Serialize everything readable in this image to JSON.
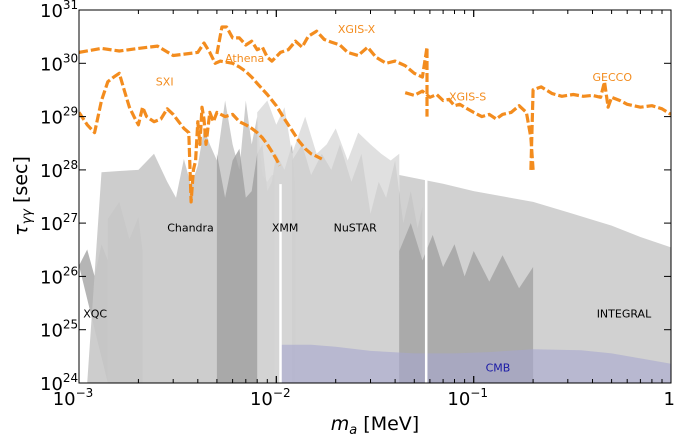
{
  "chart_data": {
    "type": "area",
    "xscale": "log",
    "yscale": "log",
    "xlim": [
      0.001,
      1
    ],
    "ylim": [
      1e+24,
      1e+31
    ],
    "xlabel": "m_a [MeV]",
    "ylabel": "τ_γγ [sec]",
    "x_ticks": [
      {
        "value": 0.001,
        "mantissa": "10",
        "exp": "−3"
      },
      {
        "value": 0.01,
        "mantissa": "10",
        "exp": "−2"
      },
      {
        "value": 0.1,
        "mantissa": "10",
        "exp": "−1"
      },
      {
        "value": 1,
        "mantissa": "1",
        "exp": ""
      }
    ],
    "y_ticks": [
      {
        "value": 1e+24,
        "mantissa": "10",
        "exp": "24"
      },
      {
        "value": 1e+25,
        "mantissa": "10",
        "exp": "25"
      },
      {
        "value": 1e+26,
        "mantissa": "10",
        "exp": "26"
      },
      {
        "value": 1e+27,
        "mantissa": "10",
        "exp": "27"
      },
      {
        "value": 1e+28,
        "mantissa": "10",
        "exp": "28"
      },
      {
        "value": 1e+29,
        "mantissa": "10",
        "exp": "29"
      },
      {
        "value": 1e+30,
        "mantissa": "10",
        "exp": "30"
      },
      {
        "value": 1e+31,
        "mantissa": "10",
        "exp": "31"
      }
    ],
    "excluded_regions": [
      {
        "name": "XQC",
        "color": "#a8a8a8",
        "opacity": 0.85,
        "label_at": [
          0.00105,
          1.7e+25
        ],
        "label_color": "#000000",
        "x": [
          0.001,
          0.0011,
          0.0012,
          0.0013,
          0.0014,
          0.0014
        ],
        "y": [
          1.6e+26,
          3.2e+26,
          1e+26,
          4e+26,
          2e+26,
          1e+24
        ]
      },
      {
        "name": "",
        "color": "#bdbdbd",
        "opacity": 0.85,
        "label_at": null,
        "label_color": "#000000",
        "x": [
          0.0014,
          0.0014,
          0.0016,
          0.0018,
          0.002,
          0.0021,
          0.0021
        ],
        "y": [
          1e+24,
          1.2e+27,
          2.5e+27,
          5e+26,
          1.3e+27,
          3e+26,
          1e+24
        ]
      },
      {
        "name": "Chandra",
        "color": "#c8c8c8",
        "opacity": 0.9,
        "label_at": [
          0.0028,
          7e+26
        ],
        "label_color": "#000000",
        "x": [
          0.0011,
          0.0013,
          0.0016,
          0.002,
          0.0024,
          0.0028,
          0.0031,
          0.0034,
          0.0037,
          0.004,
          0.0043,
          0.0046,
          0.005,
          0.0055,
          0.006,
          0.0065,
          0.007,
          0.0075,
          0.008,
          0.0085,
          0.009,
          0.0095,
          0.0098,
          0.0098
        ],
        "y": [
          1e+24,
          9e+27,
          9.5e+27,
          1e+28,
          2e+28,
          6e+27,
          3e+27,
          1.6e+28,
          5e+27,
          1.2e+28,
          6e+28,
          3e+28,
          1.5e+28,
          2e+29,
          3e+28,
          1e+28,
          2e+29,
          3e+28,
          1e+29,
          8e+27,
          6e+27,
          8e+27,
          8e+27,
          1e+24
        ]
      },
      {
        "name": "XMM",
        "color": "#9c9c9c",
        "opacity": 0.75,
        "label_at": [
          0.0095,
          7e+26
        ],
        "label_color": "#000000",
        "x": [
          0.005,
          0.005,
          0.0055,
          0.006,
          0.0065,
          0.007,
          0.0075,
          0.008,
          0.0085,
          0.009,
          0.0095,
          0.01,
          0.011,
          0.012,
          0.0125,
          0.0125
        ],
        "y": [
          1e+24,
          2e+28,
          3e+27,
          1.5e+28,
          2.5e+28,
          3e+27,
          4e+27,
          2e+28,
          3e+28,
          4e+27,
          6e+27,
          2e+28,
          1e+28,
          3e+28,
          4e+27,
          1e+24
        ]
      },
      {
        "name": "NuSTAR",
        "color": "#8c8c8c",
        "opacity": 0.8,
        "label_at": [
          0.0195,
          7e+26
        ],
        "label_color": "#000000",
        "x": [
          0.012,
          0.012,
          0.0135,
          0.015,
          0.017,
          0.019,
          0.021,
          0.024,
          0.027,
          0.03,
          0.033,
          0.036,
          0.04,
          0.044,
          0.048,
          0.052,
          0.055,
          0.055
        ],
        "y": [
          1e+24,
          1.5e+28,
          3e+28,
          8e+27,
          2e+28,
          1e+28,
          3e+28,
          6e+27,
          2e+28,
          1.5e+27,
          6e+27,
          3e+27,
          1.5e+28,
          1e+27,
          4e+27,
          8e+26,
          2e+27,
          1e+24
        ]
      },
      {
        "name": "",
        "color": "#dadada",
        "opacity": 0.85,
        "label_at": null,
        "label_color": "#000000",
        "x": [
          0.008,
          0.008,
          0.009,
          0.01,
          0.011,
          0.012,
          0.014,
          0.016,
          0.018,
          0.02,
          0.023,
          0.026,
          0.03,
          0.034,
          0.038,
          0.042,
          0.042
        ],
        "y": [
          1e+24,
          1.2e+29,
          2e+29,
          7e+28,
          1.5e+29,
          2e+28,
          1e+29,
          2e+28,
          3e+28,
          6e+28,
          1.5e+28,
          5e+28,
          3e+28,
          2e+28,
          1.5e+28,
          2e+28,
          1e+24
        ]
      },
      {
        "name": "INTEGRAL",
        "color": "#cccccc",
        "opacity": 0.9,
        "label_at": [
          0.42,
          1.7e+25
        ],
        "label_color": "#000000",
        "x": [
          0.042,
          0.042,
          0.07,
          0.1,
          0.2,
          0.3,
          0.5,
          0.7,
          1.0,
          1.0
        ],
        "y": [
          1e+24,
          8e+27,
          5.5e+27,
          4e+27,
          2.5e+27,
          1.6e+27,
          9e+26,
          5.5e+26,
          3.5e+26,
          1e+24
        ]
      },
      {
        "name": "",
        "color": "#a4a4a4",
        "opacity": 0.85,
        "label_at": null,
        "label_color": "#000000",
        "x": [
          0.042,
          0.042,
          0.048,
          0.055,
          0.062,
          0.07,
          0.08,
          0.09,
          0.1,
          0.12,
          0.14,
          0.17,
          0.2,
          0.2
        ],
        "y": [
          1e+24,
          3e+26,
          1e+27,
          2e+26,
          6e+26,
          1.5e+26,
          4e+26,
          1e+26,
          3e+26,
          8e+25,
          2.5e+26,
          6e+25,
          1.5e+26,
          1e+24
        ]
      },
      {
        "name": "CMB",
        "color": "#a7a7cf",
        "opacity": 0.6,
        "label_at": [
          0.115,
          1.65e+24
        ],
        "label_color": "#1a1aa6",
        "x": [
          0.0105,
          0.015,
          0.02,
          0.03,
          0.05,
          0.08,
          0.12,
          0.2,
          0.35,
          0.5,
          0.7,
          1.0,
          1.0,
          0.0105
        ],
        "y": [
          5.2e+24,
          5.2e+24,
          4.8e+24,
          4e+24,
          3.6e+24,
          3.6e+24,
          3.8e+24,
          4.3e+24,
          4.1e+24,
          3.6e+24,
          2.9e+24,
          2.3e+24,
          1e+24,
          1e+24
        ]
      }
    ],
    "gaps": [
      {
        "x": 0.0105,
        "y_top": 5.4e+27
      },
      {
        "x": 0.0575,
        "y_top": 9e+27
      }
    ],
    "projections": [
      {
        "name": "XGIS-X",
        "label_at": [
          0.0205,
          3.7e+30
        ],
        "x": [
          0.005,
          0.0053,
          0.0056,
          0.006,
          0.0065,
          0.007,
          0.0075,
          0.008,
          0.0085,
          0.009,
          0.0095,
          0.0105,
          0.0115,
          0.0125,
          0.0135,
          0.0145,
          0.016,
          0.0175,
          0.019,
          0.021,
          0.023,
          0.026,
          0.029,
          0.032,
          0.036,
          0.04,
          0.045,
          0.05,
          0.055,
          0.058,
          0.058
        ],
        "y": [
          1.5e+30,
          4.8e+30,
          4.8e+30,
          3e+30,
          3e+30,
          2.2e+30,
          2.6e+30,
          1.8e+30,
          2e+30,
          1.3e+30,
          1.1e+30,
          1.6e+30,
          1.8e+30,
          2.6e+30,
          2e+30,
          3.2e+30,
          4e+30,
          2.8e+30,
          2.5e+30,
          2.2e+30,
          1.6e+30,
          1.4e+30,
          2e+30,
          1.3e+30,
          1e+30,
          1.1e+30,
          9e+29,
          6.5e+29,
          5.5e+29,
          2e+30,
          1e+29
        ]
      },
      {
        "name": "Athena",
        "label_at": [
          0.0055,
          1.05e+30
        ],
        "x": [
          0.001,
          0.0013,
          0.0016,
          0.002,
          0.0025,
          0.003,
          0.0035,
          0.004,
          0.0043,
          0.0046,
          0.0049,
          0.0052,
          0.0056,
          0.006,
          0.0065,
          0.007,
          0.0075,
          0.008,
          0.009,
          0.01,
          0.011,
          0.012,
          0.013,
          0.014,
          0.015,
          0.016,
          0.017
        ],
        "y": [
          1.6e+30,
          1.9e+30,
          1.7e+30,
          1.9e+30,
          2.1e+30,
          1.4e+30,
          1.5e+30,
          1.6e+30,
          2.4e+30,
          1.6e+30,
          1e+30,
          1.1e+30,
          1.05e+30,
          1e+30,
          8.5e+29,
          7e+29,
          5.5e+29,
          4.2e+29,
          2.6e+29,
          1.6e+29,
          9e+28,
          5.5e+28,
          3.5e+28,
          2.5e+28,
          2e+28,
          1.8e+28,
          1.6e+28
        ]
      },
      {
        "name": "SXI",
        "label_at": [
          0.00245,
          3.8e+29
        ],
        "x": [
          0.001,
          0.0011,
          0.0012,
          0.0013,
          0.0014,
          0.0015,
          0.0016,
          0.0017,
          0.0018,
          0.0019,
          0.002,
          0.0021,
          0.0022,
          0.0024,
          0.0026,
          0.0028,
          0.003,
          0.0032,
          0.0034,
          0.0036,
          0.0037,
          0.0038,
          0.0039,
          0.004,
          0.0041,
          0.0042,
          0.0043,
          0.0044,
          0.0045,
          0.0046,
          0.0048,
          0.005,
          0.0055,
          0.006,
          0.0065,
          0.007,
          0.0075,
          0.008,
          0.0085,
          0.009,
          0.0095,
          0.01,
          0.0104
        ],
        "y": [
          1.2e+29,
          7e+28,
          5e+28,
          2e+29,
          4.5e+29,
          5.5e+29,
          6.5e+29,
          3e+29,
          1.5e+29,
          1e+29,
          7e+28,
          1.5e+29,
          1e+29,
          8e+28,
          9e+28,
          1.4e+29,
          1.1e+29,
          8e+28,
          6e+28,
          5e+28,
          2.5e+27,
          1e+28,
          1.5e+28,
          8e+28,
          3e+28,
          1.5e+29,
          9e+28,
          3e+28,
          6e+28,
          1.2e+29,
          8e+28,
          1.2e+29,
          1e+29,
          1.1e+29,
          8e+28,
          7e+28,
          6e+28,
          5e+28,
          4e+28,
          3e+28,
          2.2e+28,
          1.6e+28,
          1.2e+28
        ]
      },
      {
        "name": "XGIS-S",
        "label_at": [
          0.075,
          2e+29
        ],
        "x": [
          0.045,
          0.05,
          0.055,
          0.06,
          0.065,
          0.07,
          0.075,
          0.08,
          0.085,
          0.09,
          0.1,
          0.11,
          0.12,
          0.13,
          0.14,
          0.155,
          0.17,
          0.185,
          0.195,
          0.2
        ],
        "y": [
          2.8e+29,
          2.5e+29,
          3e+29,
          2.3e+29,
          2.6e+29,
          2e+29,
          2.1e+29,
          1.6e+29,
          1.7e+29,
          1.5e+29,
          1.2e+29,
          1e+29,
          1.1e+29,
          9e+28,
          1.1e+29,
          1.2e+29,
          1.6e+29,
          1.2e+29,
          4e+28,
          1e+28
        ]
      },
      {
        "name": "GECCO",
        "label_at": [
          0.4,
          4.7e+29
        ],
        "x": [
          0.195,
          0.2,
          0.22,
          0.25,
          0.28,
          0.32,
          0.36,
          0.4,
          0.44,
          0.46,
          0.48,
          0.5,
          0.55,
          0.6,
          0.7,
          0.8,
          0.9,
          1.0
        ],
        "y": [
          1e+28,
          3.2e+29,
          3.6e+29,
          2.7e+29,
          2.4e+29,
          2.6e+29,
          2.4e+29,
          2.5e+29,
          2.3e+29,
          4.5e+29,
          1.5e+29,
          2.3e+29,
          2e+29,
          1.7e+29,
          1.5e+29,
          1.6e+29,
          1.4e+29,
          1.1e+29
        ]
      }
    ],
    "projection_color": "#f38c1e",
    "grid": false
  }
}
